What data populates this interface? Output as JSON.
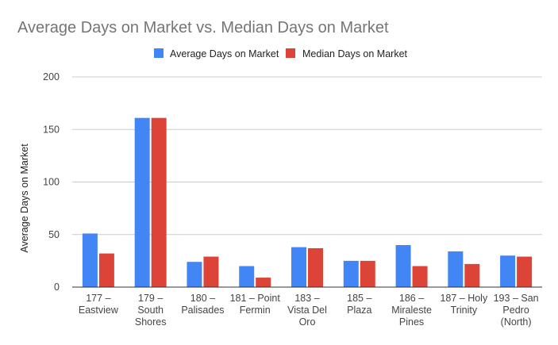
{
  "chart_data": {
    "type": "bar",
    "title": "Average Days on Market vs. Median Days on Market",
    "ylabel": "Average Days on Market",
    "xlabel": "",
    "ylim": [
      0,
      200
    ],
    "yticks": [
      0,
      50,
      100,
      150,
      200
    ],
    "grid": true,
    "legend_position": "top-center",
    "categories": [
      "177 – Eastview",
      "179 – South Shores",
      "180 – Palisades",
      "181 – Point Fermin",
      "183 – Vista Del Oro",
      "185 – Plaza",
      "186 – Miraleste Pines",
      "187 – Holy Trinity",
      "193 – San Pedro (North)"
    ],
    "category_lines": [
      [
        "177 –",
        "Eastview"
      ],
      [
        "179 –",
        "South",
        "Shores"
      ],
      [
        "180 –",
        "Palisades"
      ],
      [
        "181 – Point",
        "Fermin"
      ],
      [
        "183 –",
        "Vista Del",
        "Oro"
      ],
      [
        "185 –",
        "Plaza"
      ],
      [
        "186 –",
        "Miraleste",
        "Pines"
      ],
      [
        "187 – Holy",
        "Trinity"
      ],
      [
        "193 – San",
        "Pedro",
        "(North)"
      ]
    ],
    "series": [
      {
        "name": "Average Days on Market",
        "color": "#4285F4",
        "values": [
          51,
          161,
          24,
          20,
          38,
          25,
          40,
          34,
          30
        ]
      },
      {
        "name": "Median Days on Market",
        "color": "#DB4437",
        "values": [
          32,
          161,
          29,
          9,
          37,
          25,
          20,
          22,
          29
        ]
      }
    ]
  }
}
